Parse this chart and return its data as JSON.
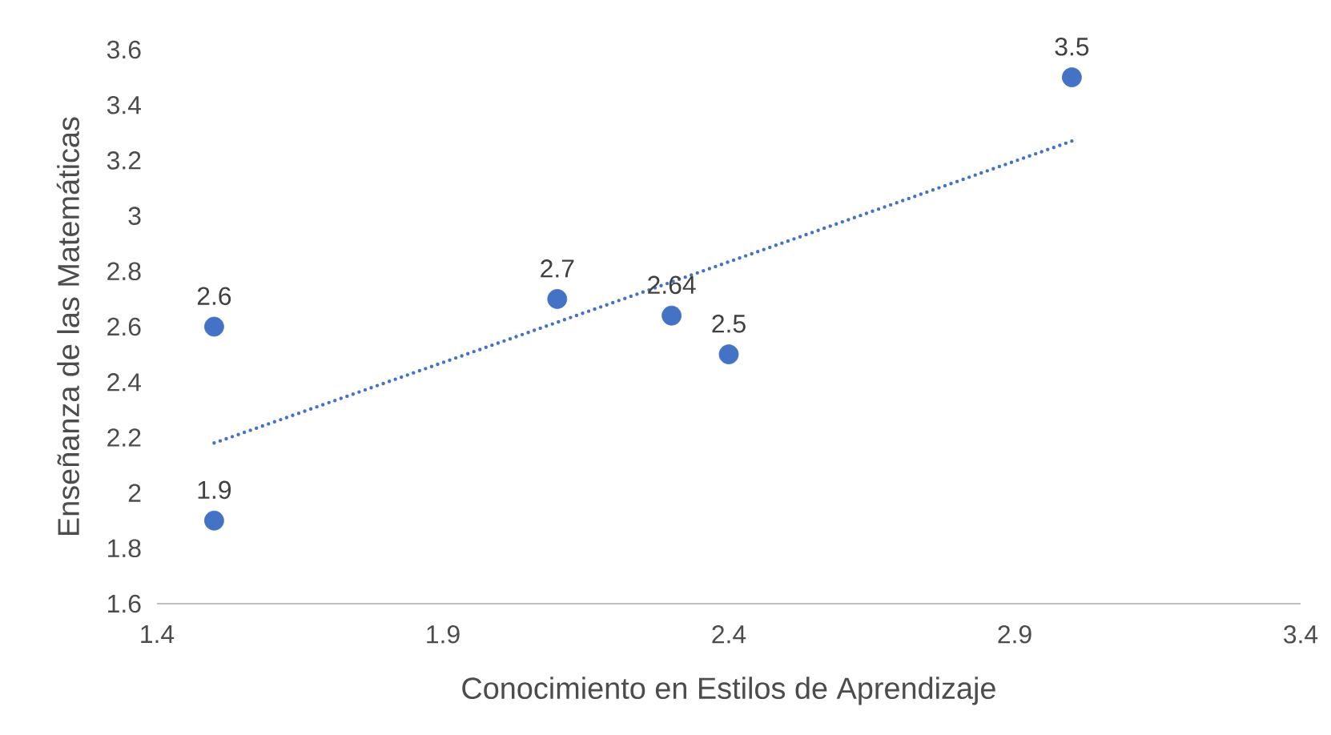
{
  "chart_data": {
    "type": "scatter",
    "xlabel": "Conocimiento en Estilos de Aprendizaje",
    "ylabel": "Enseñanza de las Matemáticas",
    "series": [
      {
        "color": "#4472c4",
        "marker": "circle",
        "data_labels": true,
        "x": [
          1.5,
          1.5,
          2.1,
          2.3,
          2.4,
          3.0
        ],
        "values": [
          2.6,
          1.9,
          2.7,
          2.64,
          2.5,
          3.5
        ]
      },
      {
        "type": "line",
        "color": "#4472c4",
        "line_style": "dotted",
        "marker": "none",
        "x": [
          1.5,
          3.0
        ],
        "values": [
          2.18,
          3.27
        ]
      }
    ],
    "xlim": [
      1.4,
      3.4
    ],
    "xticks": [
      1.4,
      1.9,
      2.4,
      2.9,
      3.4
    ],
    "ylim": [
      1.6,
      3.6
    ],
    "yticks": [
      1.6,
      1.8,
      2,
      2.2,
      2.4,
      2.6,
      2.8,
      3,
      3.2,
      3.4,
      3.6
    ],
    "grid": false
  }
}
